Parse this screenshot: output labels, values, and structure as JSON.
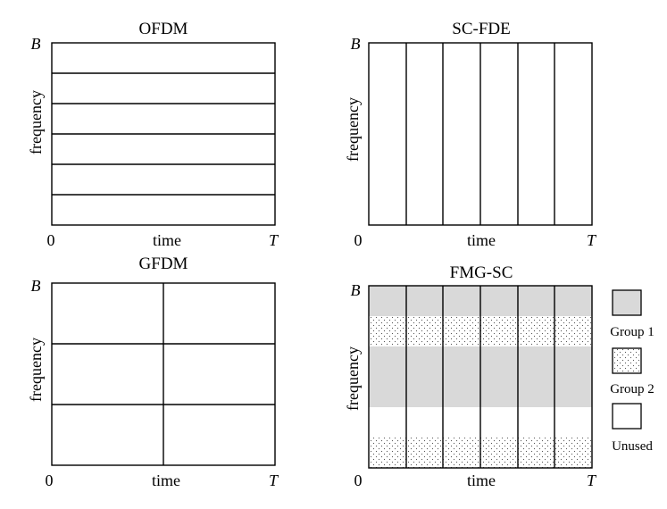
{
  "panels": {
    "ofdm": {
      "title": "OFDM",
      "ylabel": "frequency",
      "xlabel": "time",
      "top_label": "B",
      "origin_label": "0",
      "end_label": "T"
    },
    "scfde": {
      "title": "SC-FDE",
      "ylabel": "frequency",
      "xlabel": "time",
      "top_label": "B",
      "origin_label": "0",
      "end_label": "T"
    },
    "gfdm": {
      "title": "GFDM",
      "ylabel": "frequency",
      "xlabel": "time",
      "top_label": "B",
      "origin_label": "0",
      "end_label": "T"
    },
    "fmgsc": {
      "title": "FMG-SC",
      "ylabel": "frequency",
      "xlabel": "time",
      "top_label": "B",
      "origin_label": "0",
      "end_label": "T"
    }
  },
  "legend": {
    "items": [
      {
        "label": "Group 1",
        "style": "solid",
        "color": "#d9d9d9"
      },
      {
        "label": "Group 2",
        "style": "dotted",
        "color": "#ffffff"
      },
      {
        "label": "Unused",
        "style": "empty",
        "color": "#ffffff"
      }
    ]
  },
  "colors": {
    "group1": "#d9d9d9",
    "group2_dots": "#555555",
    "line": "#000000"
  }
}
